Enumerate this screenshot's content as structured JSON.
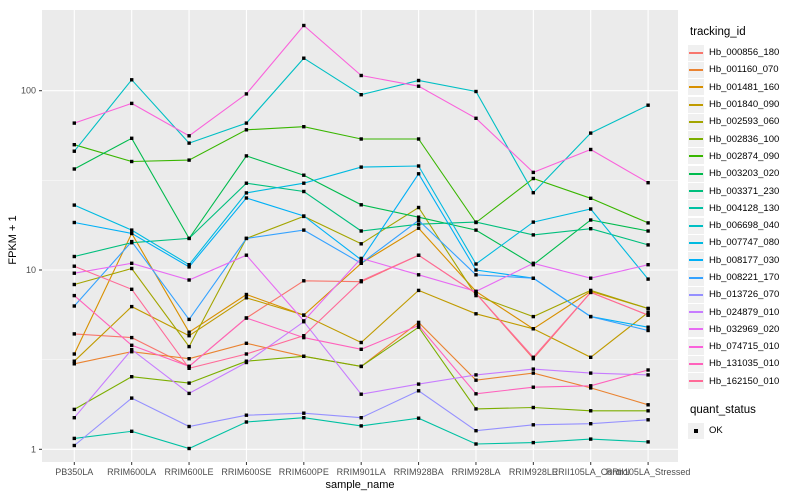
{
  "axes": {
    "y_tick_labels": [
      "100",
      "10",
      "1"
    ],
    "x_title": "sample_name",
    "y_title": "FPKM + 1"
  },
  "legend": {
    "tracking_title": "tracking_id",
    "quant_title": "quant_status",
    "quant_items": [
      {
        "label": "OK",
        "marker": "black-square"
      }
    ]
  },
  "colors": {
    "panel_bg": "#EBEBEB",
    "grid_major": "#FFFFFF",
    "grid_minor": "#F7F7F7",
    "tick_text": "#4D4D4D",
    "tick_mark": "#333333",
    "marker": "#000000",
    "legend_key_bg": "#F0F0F0"
  },
  "chart_data": {
    "type": "line",
    "title": "",
    "xlabel": "sample_name",
    "ylabel": "FPKM + 1",
    "y_scale": "log10",
    "y_ticks": [
      1,
      10,
      100
    ],
    "y_minor_ticks": [
      3.162,
      31.62
    ],
    "ylim": [
      0.85,
      290
    ],
    "grid": true,
    "legend_position": "right",
    "marker_shape": "square",
    "categories": [
      "PB350LA",
      "RRIM600LA",
      "RRIM600LE",
      "RRIM600SE",
      "RRIM600PE",
      "RRIM901LA",
      "RRIM928BA",
      "RRIM928LA",
      "RRIM928LE",
      "RRII105LA_Control",
      "RRII105LA_Stressed"
    ],
    "series": [
      {
        "name": "Hb_000856_180",
        "color": "#F8766D",
        "values": [
          4.4,
          4.2,
          2.9,
          5.4,
          8.7,
          8.6,
          12.1,
          7.4,
          3.2,
          7.5,
          5.6
        ]
      },
      {
        "name": "Hb_001160_070",
        "color": "#EA8331",
        "values": [
          3.0,
          3.5,
          3.2,
          3.9,
          3.3,
          2.9,
          5.1,
          2.43,
          2.66,
          2.2,
          1.77
        ]
      },
      {
        "name": "Hb_001481_160",
        "color": "#D89000",
        "values": [
          3.4,
          16.0,
          4.5,
          7.3,
          5.6,
          10.9,
          17.1,
          7.6,
          4.7,
          7.6,
          6.1
        ]
      },
      {
        "name": "Hb_001840_090",
        "color": "#C09B00",
        "values": [
          3.1,
          6.25,
          4.3,
          7.0,
          5.6,
          3.94,
          7.7,
          5.7,
          4.7,
          3.26,
          5.8
        ]
      },
      {
        "name": "Hb_002593_060",
        "color": "#A3A500",
        "values": [
          8.3,
          10.2,
          3.74,
          15.0,
          19.9,
          14.0,
          22.3,
          7.2,
          5.5,
          7.7,
          6.1
        ]
      },
      {
        "name": "Hb_002836_100",
        "color": "#7CAE00",
        "values": [
          1.67,
          2.54,
          2.34,
          3.1,
          3.3,
          2.9,
          4.8,
          1.68,
          1.71,
          1.64,
          1.64
        ]
      },
      {
        "name": "Hb_002874_090",
        "color": "#39B600",
        "values": [
          50,
          40.3,
          41,
          60.5,
          63,
          53.8,
          53.8,
          18.4,
          32.4,
          25.1,
          18.3
        ]
      },
      {
        "name": "Hb_003203_020",
        "color": "#00BB4E",
        "values": [
          36.6,
          54.3,
          15,
          43.3,
          33.8,
          23.1,
          19.7,
          16.7,
          10.7,
          19,
          16.5
        ]
      },
      {
        "name": "Hb_003371_230",
        "color": "#00BF7D",
        "values": [
          11.9,
          14.2,
          15,
          30.5,
          27.4,
          16.5,
          18,
          18.5,
          15.7,
          17,
          13.8
        ]
      },
      {
        "name": "Hb_004128_130",
        "color": "#00C1A3",
        "values": [
          1.15,
          1.26,
          1.01,
          1.42,
          1.5,
          1.35,
          1.49,
          1.07,
          1.09,
          1.14,
          1.1
        ]
      },
      {
        "name": "Hb_006698_040",
        "color": "#00BFC4",
        "values": [
          46,
          115,
          51,
          66,
          151.7,
          95,
          114,
          99,
          27,
          58,
          83
        ]
      },
      {
        "name": "Hb_007747_080",
        "color": "#00BAE0",
        "values": [
          23,
          16.7,
          10.7,
          26.9,
          30.5,
          37.5,
          38,
          10.8,
          18.5,
          21.9,
          8.9
        ]
      },
      {
        "name": "Hb_008177_030",
        "color": "#00B0F6",
        "values": [
          18.4,
          16,
          10.4,
          25.2,
          20,
          11.4,
          34.4,
          10,
          9.0,
          5.5,
          4.8
        ]
      },
      {
        "name": "Hb_008221_170",
        "color": "#35A2FF",
        "values": [
          6.3,
          14.4,
          5.3,
          15,
          16.7,
          10.9,
          18.9,
          9.4,
          9.0,
          5.5,
          4.6
        ]
      },
      {
        "name": "Hb_013726_070",
        "color": "#9590FF",
        "values": [
          1.05,
          1.93,
          1.34,
          1.55,
          1.59,
          1.5,
          2.12,
          1.27,
          1.37,
          1.39,
          1.46
        ]
      },
      {
        "name": "Hb_024879_010",
        "color": "#C77CFF",
        "values": [
          1.5,
          3.6,
          2.05,
          3.05,
          5.15,
          2.03,
          2.31,
          2.6,
          2.8,
          2.66,
          2.6
        ]
      },
      {
        "name": "Hb_032969_020",
        "color": "#E76BF3",
        "values": [
          9.6,
          10.9,
          8.8,
          12.1,
          5.2,
          11.6,
          9.4,
          7.6,
          10.9,
          9.0,
          10.7
        ]
      },
      {
        "name": "Hb_074715_010",
        "color": "#FA62DB",
        "values": [
          66,
          85,
          56,
          96,
          231,
          121.5,
          106,
          70.2,
          35,
          47,
          30.7
        ]
      },
      {
        "name": "Hb_131035_010",
        "color": "#FF62BC",
        "values": [
          7.2,
          3.8,
          2.9,
          5.4,
          4.2,
          3.61,
          4.9,
          2.04,
          2.22,
          2.26,
          2.77
        ]
      },
      {
        "name": "Hb_162150_010",
        "color": "#FF6A98",
        "values": [
          10.5,
          7.8,
          2.83,
          3.4,
          4.3,
          8.7,
          12.1,
          7.4,
          3.26,
          7.5,
          5.6
        ]
      }
    ]
  }
}
